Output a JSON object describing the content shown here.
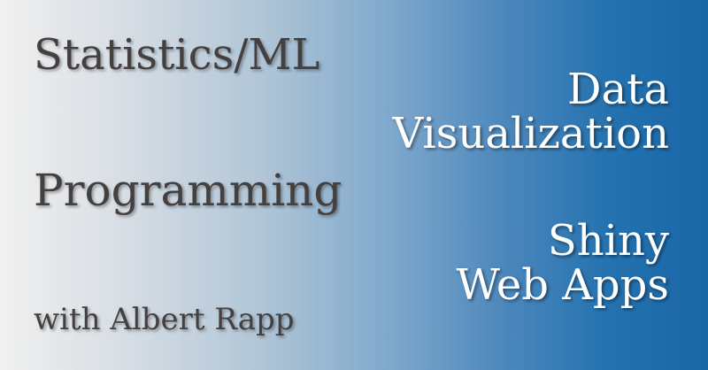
{
  "topics": {
    "statistics": "Statistics/ML",
    "programming": "Programming",
    "data_viz_line1": "Data",
    "data_viz_line2": "Visualization",
    "shiny_line1": "Shiny",
    "shiny_line2": "Web Apps"
  },
  "byline": "with Albert Rapp",
  "colors": {
    "gradient_start": "#f0f0f0",
    "gradient_end": "#1a66a6",
    "dark_text": "#454040",
    "light_text": "#ffffff"
  }
}
